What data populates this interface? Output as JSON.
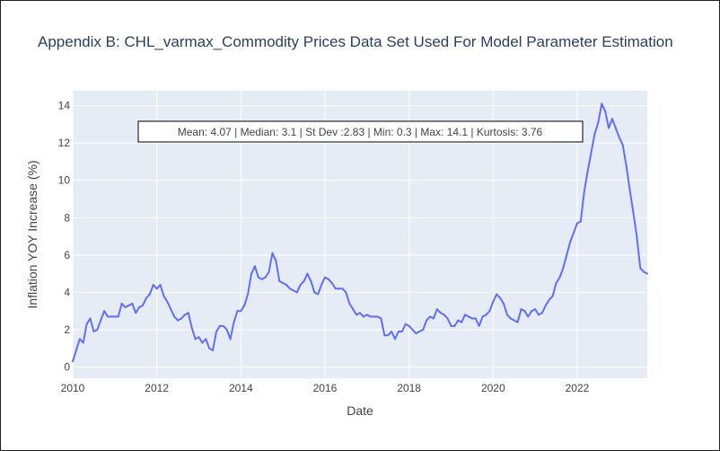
{
  "colors": {
    "line": "#636efa",
    "plot_bg": "#e5ecf6",
    "grid": "#ffffff",
    "text": "#444444",
    "title": "#2a3f5f"
  },
  "chart_data": {
    "type": "line",
    "title": "Appendix B: CHL_varmax_Commodity Prices Data Set Used For Model Parameter Estimation",
    "xlabel": "Date",
    "ylabel": "Inflation YOY Increase (%)",
    "x_range": [
      "2010-01",
      "2023-09"
    ],
    "ylim": [
      -0.6,
      14.8
    ],
    "x_ticks": [
      "2010",
      "2012",
      "2014",
      "2016",
      "2018",
      "2020",
      "2022"
    ],
    "y_ticks": [
      "0",
      "2",
      "4",
      "6",
      "8",
      "10",
      "12",
      "14"
    ],
    "grid": true,
    "annotation": "Mean: 4.07 | Median: 3.1 | St Dev :2.83 | Min: 0.3 | Max: 14.1 | Kurtosis: 3.76",
    "series": [
      {
        "x": [
          "2010-01",
          "2010-02",
          "2010-03",
          "2010-04",
          "2010-05",
          "2010-06",
          "2010-07",
          "2010-08",
          "2010-09",
          "2010-10",
          "2010-11",
          "2010-12",
          "2011-01",
          "2011-02",
          "2011-03",
          "2011-04",
          "2011-05",
          "2011-06",
          "2011-07",
          "2011-08",
          "2011-09",
          "2011-10",
          "2011-11",
          "2011-12",
          "2012-01",
          "2012-02",
          "2012-03",
          "2012-04",
          "2012-05",
          "2012-06",
          "2012-07",
          "2012-08",
          "2012-09",
          "2012-10",
          "2012-11",
          "2012-12",
          "2013-01",
          "2013-02",
          "2013-03",
          "2013-04",
          "2013-05",
          "2013-06",
          "2013-07",
          "2013-08",
          "2013-09",
          "2013-10",
          "2013-11",
          "2013-12",
          "2014-01",
          "2014-02",
          "2014-03",
          "2014-04",
          "2014-05",
          "2014-06",
          "2014-07",
          "2014-08",
          "2014-09",
          "2014-10",
          "2014-11",
          "2014-12",
          "2015-01",
          "2015-02",
          "2015-03",
          "2015-04",
          "2015-05",
          "2015-06",
          "2015-07",
          "2015-08",
          "2015-09",
          "2015-10",
          "2015-11",
          "2015-12",
          "2016-01",
          "2016-02",
          "2016-03",
          "2016-04",
          "2016-05",
          "2016-06",
          "2016-07",
          "2016-08",
          "2016-09",
          "2016-10",
          "2016-11",
          "2016-12",
          "2017-01",
          "2017-02",
          "2017-03",
          "2017-04",
          "2017-05",
          "2017-06",
          "2017-07",
          "2017-08",
          "2017-09",
          "2017-10",
          "2017-11",
          "2017-12",
          "2018-01",
          "2018-02",
          "2018-03",
          "2018-04",
          "2018-05",
          "2018-06",
          "2018-07",
          "2018-08",
          "2018-09",
          "2018-10",
          "2018-11",
          "2018-12",
          "2019-01",
          "2019-02",
          "2019-03",
          "2019-04",
          "2019-05",
          "2019-06",
          "2019-07",
          "2019-08",
          "2019-09",
          "2019-10",
          "2019-11",
          "2019-12",
          "2020-01",
          "2020-02",
          "2020-03",
          "2020-04",
          "2020-05",
          "2020-06",
          "2020-07",
          "2020-08",
          "2020-09",
          "2020-10",
          "2020-11",
          "2020-12",
          "2021-01",
          "2021-02",
          "2021-03",
          "2021-04",
          "2021-05",
          "2021-06",
          "2021-07",
          "2021-08",
          "2021-09",
          "2021-10",
          "2021-11",
          "2021-12",
          "2022-01",
          "2022-02",
          "2022-03",
          "2022-04",
          "2022-05",
          "2022-06",
          "2022-07",
          "2022-08",
          "2022-09",
          "2022-10",
          "2022-11",
          "2022-12",
          "2023-01",
          "2023-02",
          "2023-03",
          "2023-04",
          "2023-05",
          "2023-06",
          "2023-07",
          "2023-08",
          "2023-09"
        ],
        "y": [
          0.3,
          0.9,
          1.5,
          1.3,
          2.3,
          2.6,
          1.9,
          2.0,
          2.5,
          3.0,
          2.7,
          2.7,
          2.7,
          2.7,
          3.4,
          3.2,
          3.3,
          3.4,
          2.9,
          3.2,
          3.3,
          3.7,
          3.9,
          4.4,
          4.2,
          4.4,
          3.8,
          3.5,
          3.1,
          2.7,
          2.5,
          2.6,
          2.8,
          2.9,
          2.1,
          1.5,
          1.6,
          1.3,
          1.5,
          1.0,
          0.9,
          1.9,
          2.2,
          2.2,
          2.0,
          1.5,
          2.4,
          3.0,
          3.0,
          3.3,
          3.9,
          5.0,
          5.4,
          4.8,
          4.7,
          4.8,
          5.1,
          6.1,
          5.7,
          4.6,
          4.5,
          4.4,
          4.2,
          4.1,
          4.0,
          4.4,
          4.6,
          5.0,
          4.6,
          4.0,
          3.9,
          4.4,
          4.8,
          4.7,
          4.5,
          4.2,
          4.2,
          4.2,
          4.0,
          3.4,
          3.1,
          2.8,
          2.9,
          2.7,
          2.8,
          2.7,
          2.7,
          2.7,
          2.6,
          1.7,
          1.7,
          1.9,
          1.5,
          1.9,
          1.9,
          2.3,
          2.2,
          2.0,
          1.8,
          1.9,
          2.0,
          2.5,
          2.7,
          2.6,
          3.1,
          2.9,
          2.8,
          2.6,
          2.2,
          2.2,
          2.5,
          2.4,
          2.8,
          2.7,
          2.6,
          2.6,
          2.2,
          2.7,
          2.8,
          3.0,
          3.5,
          3.9,
          3.7,
          3.4,
          2.8,
          2.6,
          2.5,
          2.4,
          3.1,
          3.0,
          2.7,
          3.0,
          3.1,
          2.8,
          2.9,
          3.3,
          3.6,
          3.8,
          4.5,
          4.8,
          5.3,
          6.0,
          6.7,
          7.2,
          7.7,
          7.8,
          9.4,
          10.5,
          11.5,
          12.5,
          13.1,
          14.1,
          13.7,
          12.8,
          13.3,
          12.8,
          12.3,
          11.9,
          10.8,
          9.5,
          8.3,
          7.0,
          5.3,
          5.1,
          5.0
        ]
      }
    ]
  }
}
